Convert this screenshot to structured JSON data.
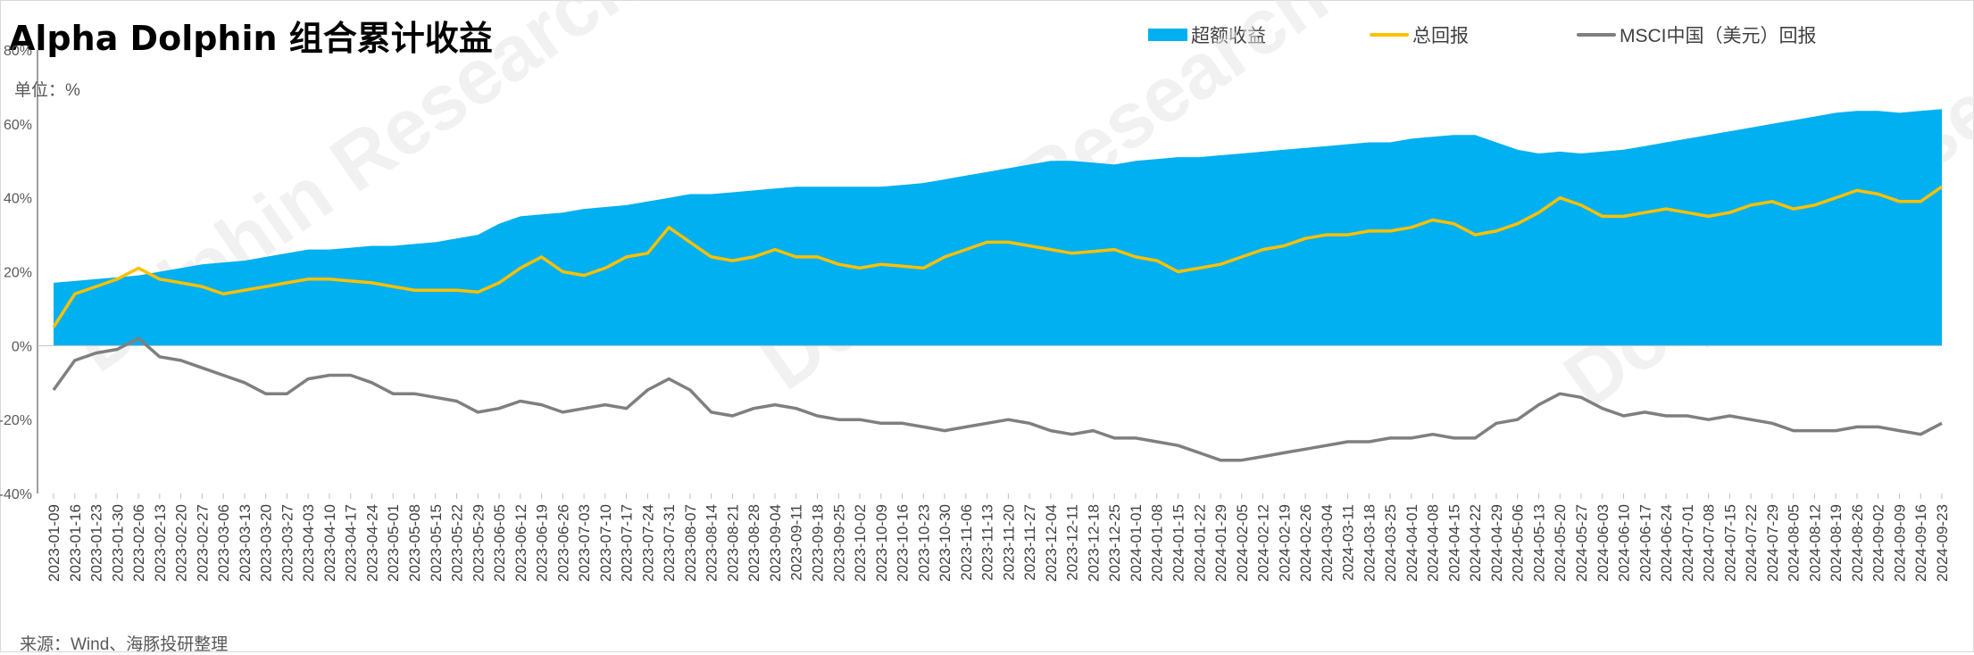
{
  "title": "Alpha Dolphin 组合累计收益",
  "unit_label": "单位：%",
  "source_label": "来源：Wind、海豚投研整理",
  "colors": {
    "excess": "#00b0f0",
    "total": "#ffc000",
    "msci": "#7f7f7f",
    "axis": "#7f7f7f",
    "text": "#595959"
  },
  "legend": [
    {
      "name": "超额收益",
      "kind": "area",
      "color": "#00b0f0"
    },
    {
      "name": "总回报",
      "kind": "line",
      "color": "#ffc000"
    },
    {
      "name": "MSCI中国（美元）回报",
      "kind": "line",
      "color": "#7f7f7f"
    }
  ],
  "chart_data": {
    "type": "area",
    "ylim": [
      -40,
      80
    ],
    "y_ticks": [
      "80%",
      "60%",
      "40%",
      "20%",
      "0%",
      "-20%",
      "-40%"
    ],
    "x_tick_labels": [
      "2023-01-09",
      "2023-01-16",
      "2023-01-23",
      "2023-01-30",
      "2023-02-06",
      "2023-02-13",
      "2023-02-20",
      "2023-02-27",
      "2023-03-06",
      "2023-03-13",
      "2023-03-20",
      "2023-03-27",
      "2023-04-03",
      "2023-04-10",
      "2023-04-17",
      "2023-04-24",
      "2023-05-01",
      "2023-05-08",
      "2023-05-15",
      "2023-05-22",
      "2023-05-29",
      "2023-06-05",
      "2023-06-12",
      "2023-06-19",
      "2023-06-26",
      "2023-07-03",
      "2023-07-10",
      "2023-07-17",
      "2023-07-24",
      "2023-07-31",
      "2023-08-07",
      "2023-08-14",
      "2023-08-21",
      "2023-08-28",
      "2023-09-04",
      "2023-09-11",
      "2023-09-18",
      "2023-09-25",
      "2023-10-02",
      "2023-10-09",
      "2023-10-16",
      "2023-10-23",
      "2023-10-30",
      "2023-11-06",
      "2023-11-13",
      "2023-11-20",
      "2023-11-27",
      "2023-12-04",
      "2023-12-11",
      "2023-12-18",
      "2023-12-25",
      "2024-01-01",
      "2024-01-08",
      "2024-01-15",
      "2024-01-22",
      "2024-01-29",
      "2024-02-05",
      "2024-02-12",
      "2024-02-19",
      "2024-02-26",
      "2024-03-04",
      "2024-03-11",
      "2024-03-18",
      "2024-03-25",
      "2024-04-01",
      "2024-04-08",
      "2024-04-15",
      "2024-04-22",
      "2024-04-29",
      "2024-05-06",
      "2024-05-13",
      "2024-05-20",
      "2024-05-27",
      "2024-06-03",
      "2024-06-10",
      "2024-06-17",
      "2024-06-24",
      "2024-07-01",
      "2024-07-08",
      "2024-07-15",
      "2024-07-22",
      "2024-07-29",
      "2024-08-05",
      "2024-08-12",
      "2024-08-19",
      "2024-08-26",
      "2024-09-02",
      "2024-09-09",
      "2024-09-16",
      "2024-09-23"
    ],
    "series": [
      {
        "name": "超额收益",
        "kind": "area",
        "values": [
          17,
          17.5,
          18,
          18.5,
          19,
          20,
          21,
          22,
          22.5,
          23,
          24,
          25,
          26,
          26,
          26.5,
          27,
          27,
          27.5,
          28,
          29,
          30,
          33,
          35,
          35.5,
          36,
          37,
          37.5,
          38,
          39,
          40,
          41,
          41,
          41.5,
          42,
          42.5,
          43,
          43,
          43,
          43,
          43,
          43.5,
          44,
          45,
          46,
          47,
          48,
          49,
          50,
          50,
          49.5,
          49,
          50,
          50.5,
          51,
          51,
          51.5,
          52,
          52.5,
          53,
          53.5,
          54,
          54.5,
          55,
          55,
          56,
          56.5,
          57,
          57,
          55,
          53,
          52,
          52.5,
          52,
          52.5,
          53,
          54,
          55,
          56,
          57,
          58,
          59,
          60,
          61,
          62,
          63,
          63.5,
          63.5,
          63,
          63.5,
          64
        ]
      },
      {
        "name": "总回报",
        "kind": "line",
        "values": [
          5,
          14,
          16,
          18,
          21,
          18,
          17,
          16,
          14,
          15,
          16,
          17,
          18,
          18,
          17.5,
          17,
          16,
          15,
          15,
          15,
          14.5,
          17,
          21,
          24,
          20,
          19,
          21,
          24,
          25,
          32,
          28,
          24,
          23,
          24,
          26,
          24,
          24,
          22,
          21,
          22,
          21.5,
          21,
          24,
          26,
          28,
          28,
          27,
          26,
          25,
          25.5,
          26,
          24,
          23,
          20,
          21,
          22,
          24,
          26,
          27,
          29,
          30,
          30,
          31,
          31,
          32,
          34,
          33,
          30,
          31,
          33,
          36,
          40,
          38,
          35,
          35,
          36,
          37,
          36,
          35,
          36,
          38,
          39,
          37,
          38,
          40,
          42,
          41,
          39,
          39,
          43
        ]
      },
      {
        "name": "MSCI中国（美元）回报",
        "kind": "line",
        "values": [
          -12,
          -4,
          -2,
          -1,
          2,
          -3,
          -4,
          -6,
          -8,
          -10,
          -13,
          -13,
          -9,
          -8,
          -8,
          -10,
          -13,
          -13,
          -14,
          -15,
          -18,
          -17,
          -15,
          -16,
          -18,
          -17,
          -16,
          -17,
          -12,
          -9,
          -12,
          -18,
          -19,
          -17,
          -16,
          -17,
          -19,
          -20,
          -20,
          -21,
          -21,
          -22,
          -23,
          -22,
          -21,
          -20,
          -21,
          -23,
          -24,
          -23,
          -25,
          -25,
          -26,
          -27,
          -29,
          -31,
          -31,
          -30,
          -29,
          -28,
          -27,
          -26,
          -26,
          -25,
          -25,
          -24,
          -25,
          -25,
          -21,
          -20,
          -16,
          -13,
          -14,
          -17,
          -19,
          -18,
          -19,
          -19,
          -20,
          -19,
          -20,
          -21,
          -23,
          -23,
          -23,
          -22,
          -22,
          -23,
          -24,
          -21
        ]
      }
    ]
  }
}
